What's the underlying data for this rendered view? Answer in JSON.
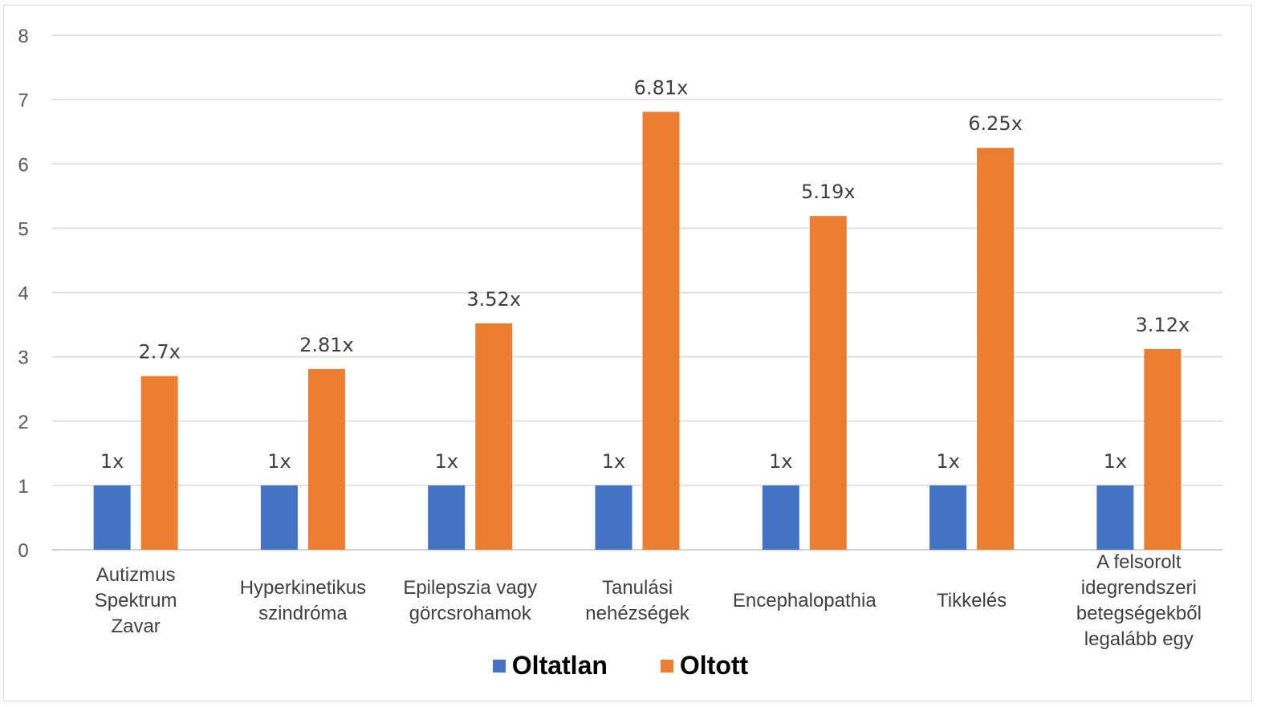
{
  "chart_data": {
    "type": "bar",
    "categories": [
      [
        "Autizmus",
        "Spektrum",
        "Zavar"
      ],
      [
        "Hyperkinetikus",
        "szindróma"
      ],
      [
        "Epilepszia vagy",
        "görcsrohamok"
      ],
      [
        "Tanulási",
        "nehézségek"
      ],
      [
        "Encephalopathia"
      ],
      [
        "Tikkelés"
      ],
      [
        "A felsorolt",
        "idegrendszeri",
        "betegségekből",
        "legalább egy"
      ]
    ],
    "series": [
      {
        "name": "Oltatlan",
        "color": "#4472c4",
        "values": [
          1,
          1,
          1,
          1,
          1,
          1,
          1
        ],
        "labels": [
          "1x",
          "1x",
          "1x",
          "1x",
          "1x",
          "1x",
          "1x"
        ]
      },
      {
        "name": "Oltott",
        "color": "#ed7d31",
        "values": [
          2.7,
          2.81,
          3.52,
          6.81,
          5.19,
          6.25,
          3.12
        ],
        "labels": [
          "2.7x",
          "2.81x",
          "3.52x",
          "6.81x",
          "5.19x",
          "6.25x",
          "3.12x"
        ]
      }
    ],
    "yticks": [
      "0",
      "1",
      "2",
      "3",
      "4",
      "5",
      "6",
      "7",
      "8"
    ],
    "ylim": [
      0,
      8
    ],
    "grid": true,
    "legend_position": "bottom"
  }
}
